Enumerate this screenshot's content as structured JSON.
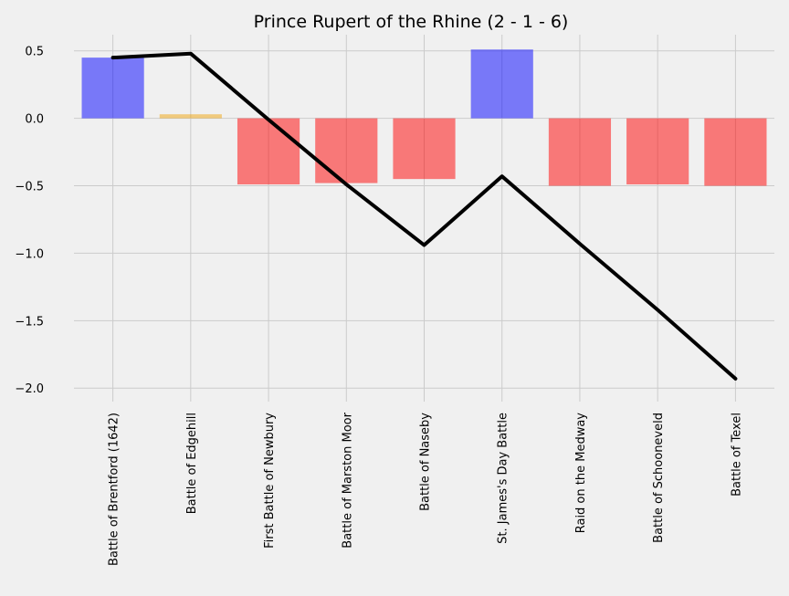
{
  "chart_data": {
    "type": "bar",
    "title": "Prince Rupert of the Rhine (2 - 1 - 6)",
    "xlabel": "",
    "ylabel": "",
    "categories": [
      "Battle of Brentford (1642)",
      "Battle of Edgehill",
      "First Battle of Newbury",
      "Battle of Marston Moor",
      "Battle of Naseby",
      "St. James's Day Battle",
      "Raid on the Medway",
      "Battle of Schooneveld",
      "Battle of Texel"
    ],
    "values": [
      0.45,
      0.03,
      -0.49,
      -0.48,
      -0.45,
      0.51,
      -0.5,
      -0.49,
      -0.5
    ],
    "bar_colors": [
      "#0000ff",
      "#f0a30a",
      "#ff0000",
      "#ff0000",
      "#ff0000",
      "#0000ff",
      "#ff0000",
      "#ff0000",
      "#ff0000"
    ],
    "bar_opacity": 0.5,
    "line": {
      "type": "line",
      "color": "#000000",
      "values": [
        0.45,
        0.48,
        -0.01,
        -0.49,
        -0.94,
        -0.43,
        -0.93,
        -1.42,
        -1.93
      ]
    },
    "ylim": [
      -2.1,
      0.62
    ],
    "yticks": [
      0.5,
      0.0,
      -0.5,
      -1.0,
      -1.5,
      -2.0
    ],
    "ytick_labels": [
      "0.5",
      "0.0",
      "−0.5",
      "−1.0",
      "−1.5",
      "−2.0"
    ],
    "grid": true,
    "legend": "none"
  }
}
